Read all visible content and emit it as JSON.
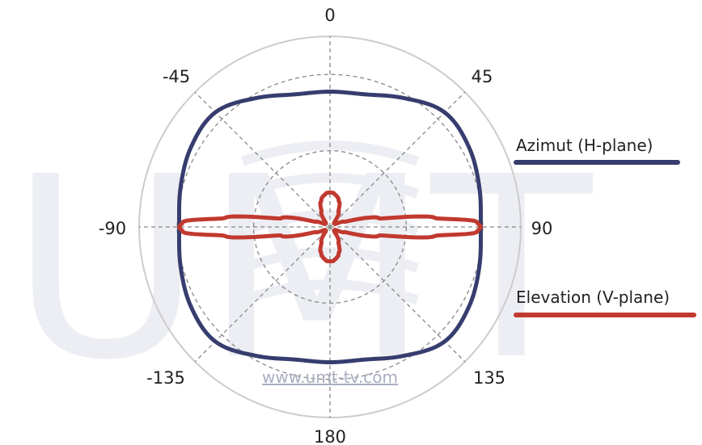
{
  "watermark": {
    "logo_text": "UMT",
    "url": "www.umt-tv.com"
  },
  "chart_data": {
    "type": "polar-line",
    "angle_direction": "clockwise, 0 at top",
    "radial_range": [
      0,
      1
    ],
    "radial_gridlines": [
      0.4,
      0.8,
      1.0
    ],
    "angle_spokes": [
      0,
      45,
      90,
      135,
      180,
      -135,
      -90,
      -45
    ],
    "tick_labels": [
      {
        "angle": 0,
        "text": "0"
      },
      {
        "angle": 45,
        "text": "45"
      },
      {
        "angle": 90,
        "text": "90"
      },
      {
        "angle": 135,
        "text": "135"
      },
      {
        "angle": 180,
        "text": "180"
      },
      {
        "angle": -135,
        "text": "-135"
      },
      {
        "angle": -90,
        "text": "-90"
      },
      {
        "angle": -45,
        "text": "-45"
      }
    ],
    "legend_placement": "right",
    "series": [
      {
        "name": "Azimut (H-plane)",
        "color": "#363d6e",
        "theta": [
          0,
          15,
          30,
          45,
          60,
          75,
          90,
          105,
          120,
          135,
          150,
          165,
          180,
          -165,
          -150,
          -135,
          -120,
          -105,
          -90,
          -75,
          -60,
          -45,
          -30,
          -15
        ],
        "r": [
          0.71,
          0.72,
          0.78,
          0.85,
          0.84,
          0.81,
          0.79,
          0.81,
          0.84,
          0.85,
          0.78,
          0.72,
          0.71,
          0.72,
          0.78,
          0.85,
          0.84,
          0.81,
          0.79,
          0.81,
          0.84,
          0.85,
          0.78,
          0.72
        ]
      },
      {
        "name": "Elevation (V-plane)",
        "color": "#c1392f",
        "model": "|cos(theta)|^n fused lobes",
        "theta": [
          0,
          5,
          10,
          15,
          20,
          30,
          45,
          60,
          70,
          80,
          85,
          88,
          90,
          92,
          95,
          100,
          110,
          120,
          135,
          150,
          160,
          165,
          170,
          175,
          180
        ],
        "r": [
          0.18,
          0.18,
          0.17,
          0.16,
          0.14,
          0.09,
          0.03,
          0.03,
          0.08,
          0.26,
          0.55,
          0.77,
          0.79,
          0.77,
          0.55,
          0.26,
          0.08,
          0.03,
          0.03,
          0.09,
          0.14,
          0.16,
          0.17,
          0.18,
          0.18
        ]
      }
    ]
  }
}
